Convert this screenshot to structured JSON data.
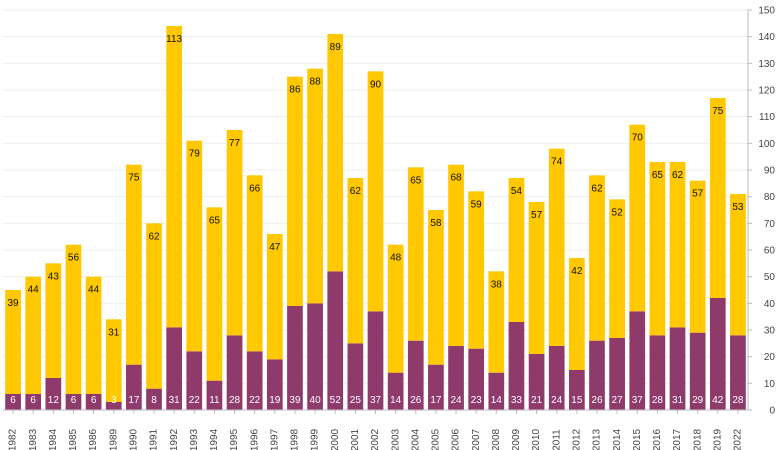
{
  "chart_data": {
    "type": "bar",
    "stacked": true,
    "categories": [
      "1982",
      "1983",
      "1984",
      "1985",
      "1986",
      "1989",
      "1990",
      "1991",
      "1992",
      "1993",
      "1994",
      "1995",
      "1996",
      "1997",
      "1998",
      "1999",
      "2000",
      "2001",
      "2002",
      "2003",
      "2004",
      "2005",
      "2006",
      "2007",
      "2008",
      "2009",
      "2010",
      "2011",
      "2012",
      "2013",
      "2014",
      "2015",
      "2016",
      "2017",
      "2018",
      "2019",
      "2022"
    ],
    "series": [
      {
        "values": [
          6,
          6,
          12,
          6,
          6,
          3,
          17,
          8,
          31,
          22,
          11,
          28,
          22,
          19,
          39,
          40,
          52,
          25,
          37,
          14,
          26,
          17,
          24,
          23,
          14,
          33,
          21,
          24,
          15,
          26,
          27,
          37,
          28,
          31,
          29,
          42,
          28
        ],
        "color": "#8e3a6b"
      },
      {
        "values": [
          39,
          44,
          43,
          56,
          44,
          31,
          75,
          62,
          113,
          79,
          65,
          77,
          66,
          47,
          86,
          88,
          89,
          62,
          90,
          48,
          65,
          58,
          68,
          59,
          38,
          54,
          57,
          74,
          42,
          62,
          52,
          70,
          65,
          62,
          57,
          75,
          53
        ],
        "color": "#ffc800"
      }
    ],
    "ylim": [
      0,
      150
    ],
    "yticks": [
      0,
      10,
      20,
      30,
      40,
      50,
      60,
      70,
      80,
      90,
      100,
      110,
      120,
      130,
      140,
      150
    ],
    "y_axis_side": "right",
    "grid": true
  }
}
